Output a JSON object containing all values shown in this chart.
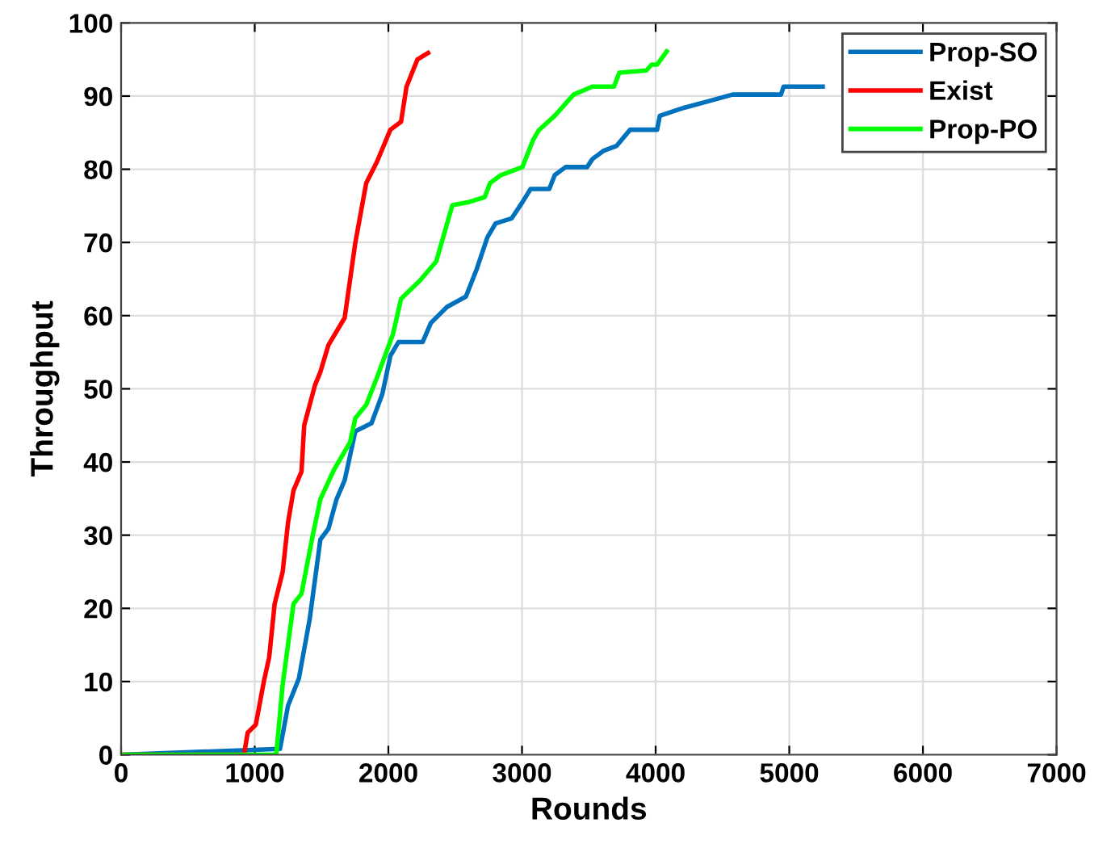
{
  "chart_data": {
    "type": "line",
    "xlabel": "Rounds",
    "ylabel": "Throughput",
    "xlim": [
      0,
      7000
    ],
    "xticks": [
      0,
      1000,
      2000,
      3000,
      4000,
      5000,
      6000,
      7000
    ],
    "ylim": [
      0,
      100
    ],
    "yticks": [
      0,
      10,
      20,
      30,
      40,
      50,
      60,
      70,
      80,
      90,
      100
    ],
    "grid": true,
    "legend": "top right",
    "line_style": "solid",
    "series": [
      {
        "name": "Prop-SO",
        "color": "#0072bd",
        "x": [
          0,
          1189,
          1249,
          1330,
          1411,
          1491,
          1552,
          1612,
          1673,
          1753,
          1874,
          1955,
          2015,
          2076,
          2257,
          2318,
          2439,
          2580,
          2660,
          2741,
          2802,
          2923,
          3003,
          3064,
          3204,
          3245,
          3326,
          3487,
          3527,
          3608,
          3708,
          3809,
          4011,
          4031,
          4212,
          4394,
          4575,
          4938,
          4958,
          5250
        ],
        "values": [
          0,
          0.8,
          6.7,
          10.4,
          18.5,
          29.4,
          30.9,
          34.9,
          37.5,
          44.2,
          45.3,
          49.3,
          54.5,
          56.4,
          56.4,
          59,
          61.2,
          62.6,
          66.3,
          70.7,
          72.6,
          73.3,
          75.5,
          77.3,
          77.3,
          79.2,
          80.3,
          80.3,
          81.4,
          82.5,
          83.2,
          85.4,
          85.4,
          87.3,
          88.4,
          89.3,
          90.2,
          90.2,
          91.3,
          91.3
        ]
      },
      {
        "name": "Exist",
        "color": "#ff0000",
        "x": [
          0,
          920,
          947,
          1008,
          1068,
          1108,
          1149,
          1209,
          1249,
          1290,
          1350,
          1370,
          1451,
          1491,
          1552,
          1673,
          1753,
          1834,
          1914,
          2015,
          2095,
          2136,
          2217,
          2297
        ],
        "values": [
          0,
          0,
          3,
          4.1,
          10,
          13.3,
          20.6,
          25,
          31.7,
          36.1,
          38.7,
          45,
          50.5,
          52.3,
          56,
          59.7,
          70,
          78.1,
          81,
          85.4,
          86.5,
          91.3,
          95,
          95.9
        ]
      },
      {
        "name": "Prop-PO",
        "color": "#00ff00",
        "x": [
          0,
          1161,
          1209,
          1290,
          1350,
          1431,
          1491,
          1592,
          1713,
          1753,
          1834,
          1914,
          2035,
          2095,
          2237,
          2358,
          2479,
          2600,
          2721,
          2761,
          2842,
          3003,
          3083,
          3124,
          3245,
          3386,
          3527,
          3688,
          3728,
          3930,
          3970,
          4011,
          4083
        ],
        "values": [
          0,
          0,
          9.6,
          20.6,
          22,
          29.7,
          34.9,
          38.9,
          42.7,
          46,
          47.8,
          51.5,
          57.5,
          62.3,
          64.8,
          67.4,
          75.1,
          75.5,
          76.2,
          78.1,
          79.2,
          80.3,
          84,
          85.3,
          87.3,
          90.2,
          91.3,
          91.3,
          93.2,
          93.5,
          94.3,
          94.3,
          96.1
        ]
      }
    ]
  }
}
